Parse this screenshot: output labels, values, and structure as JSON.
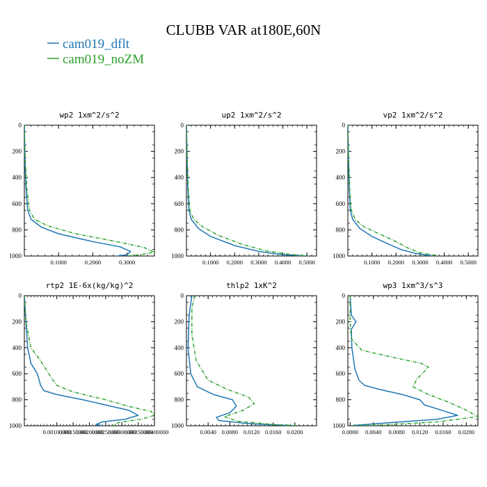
{
  "figure": {
    "title": "CLUBB VAR at180E,60N",
    "colors": {
      "dflt": "#1f77b4",
      "noZM": "#2ca02c",
      "axis": "#000000"
    }
  },
  "legend": {
    "entries": [
      {
        "label": "cam019_dflt",
        "color": "#1f77b4",
        "style": "solid"
      },
      {
        "label": "cam019_noZM",
        "color": "#2ca02c",
        "style": "dashed"
      }
    ]
  },
  "chart_data": [
    {
      "type": "line",
      "title": "wp2  1xm^2/s^2",
      "xlim": [
        0,
        0.38
      ],
      "ylim": [
        1000,
        0
      ],
      "xticks": [
        0.1,
        0.2,
        0.3
      ],
      "xtick_labels": [
        "0.1000",
        "0.2000",
        "0.3000"
      ],
      "yticks": [
        0,
        200,
        400,
        600,
        800,
        1000
      ],
      "ytick_labels": [
        "0",
        "200",
        "400",
        "600",
        "800",
        "1000"
      ],
      "series": [
        {
          "name": "cam019_dflt",
          "points": [
            [
              0,
              0
            ],
            [
              0.002,
              300
            ],
            [
              0.005,
              500
            ],
            [
              0.01,
              650
            ],
            [
              0.02,
              720
            ],
            [
              0.05,
              780
            ],
            [
              0.1,
              830
            ],
            [
              0.2,
              890
            ],
            [
              0.28,
              930
            ],
            [
              0.31,
              965
            ],
            [
              0.3,
              990
            ],
            [
              0.27,
              1000
            ]
          ]
        },
        {
          "name": "cam019_noZM",
          "points": [
            [
              0,
              0
            ],
            [
              0.003,
              300
            ],
            [
              0.008,
              500
            ],
            [
              0.015,
              650
            ],
            [
              0.03,
              720
            ],
            [
              0.07,
              770
            ],
            [
              0.15,
              830
            ],
            [
              0.27,
              890
            ],
            [
              0.35,
              935
            ],
            [
              0.38,
              970
            ],
            [
              0.34,
              990
            ],
            [
              0.3,
              1000
            ]
          ]
        }
      ]
    },
    {
      "type": "line",
      "title": "up2  1xm^2/s^2",
      "xlim": [
        0,
        0.54
      ],
      "ylim": [
        1000,
        0
      ],
      "xticks": [
        0.1,
        0.2,
        0.3,
        0.4,
        0.5
      ],
      "xtick_labels": [
        "0.1000",
        "0.2000",
        "0.3000",
        "0.4000",
        "0.5000"
      ],
      "yticks": [
        0,
        200,
        400,
        600,
        800,
        1000
      ],
      "ytick_labels": [
        "0",
        "200",
        "400",
        "600",
        "800",
        "1000"
      ],
      "series": [
        {
          "name": "cam019_dflt",
          "points": [
            [
              0,
              0
            ],
            [
              0.003,
              300
            ],
            [
              0.006,
              500
            ],
            [
              0.01,
              650
            ],
            [
              0.02,
              720
            ],
            [
              0.05,
              790
            ],
            [
              0.1,
              850
            ],
            [
              0.2,
              920
            ],
            [
              0.3,
              965
            ],
            [
              0.4,
              990
            ],
            [
              0.5,
              1000
            ]
          ]
        },
        {
          "name": "cam019_noZM",
          "points": [
            [
              0,
              0
            ],
            [
              0.004,
              300
            ],
            [
              0.008,
              500
            ],
            [
              0.015,
              650
            ],
            [
              0.03,
              720
            ],
            [
              0.07,
              780
            ],
            [
              0.13,
              840
            ],
            [
              0.23,
              910
            ],
            [
              0.33,
              960
            ],
            [
              0.42,
              985
            ],
            [
              0.5,
              1000
            ]
          ]
        }
      ]
    },
    {
      "type": "line",
      "title": "vp2  1xm^2/s^2",
      "xlim": [
        0,
        0.54
      ],
      "ylim": [
        1000,
        0
      ],
      "xticks": [
        0.1,
        0.2,
        0.3,
        0.4,
        0.5
      ],
      "xtick_labels": [
        "0.1000",
        "0.2000",
        "0.3000",
        "0.4000",
        "0.5000"
      ],
      "yticks": [
        0,
        200,
        400,
        600,
        800,
        1000
      ],
      "ytick_labels": [
        "0",
        "200",
        "400",
        "600",
        "800",
        "1000"
      ],
      "series": [
        {
          "name": "cam019_dflt",
          "points": [
            [
              0,
              0
            ],
            [
              0.003,
              300
            ],
            [
              0.006,
              500
            ],
            [
              0.01,
              650
            ],
            [
              0.02,
              720
            ],
            [
              0.05,
              790
            ],
            [
              0.1,
              850
            ],
            [
              0.17,
              910
            ],
            [
              0.22,
              950
            ],
            [
              0.28,
              980
            ],
            [
              0.35,
              1000
            ]
          ]
        },
        {
          "name": "cam019_noZM",
          "points": [
            [
              0,
              0
            ],
            [
              0.004,
              300
            ],
            [
              0.008,
              500
            ],
            [
              0.015,
              650
            ],
            [
              0.03,
              720
            ],
            [
              0.07,
              780
            ],
            [
              0.13,
              830
            ],
            [
              0.2,
              890
            ],
            [
              0.25,
              940
            ],
            [
              0.3,
              975
            ],
            [
              0.38,
              1000
            ]
          ]
        }
      ]
    },
    {
      "type": "line",
      "title": "rtp2  1E-6x(kg/kg)^2",
      "xlim": [
        0,
        0.004
      ],
      "ylim": [
        1000,
        0
      ],
      "xticks": [
        0.001,
        0.0015,
        0.002,
        0.0025,
        0.003,
        0.0035,
        0.004
      ],
      "xtick_labels": [
        "0.00100000",
        "0.00150000",
        "0.00200000",
        "0.00250000",
        "0.00300000",
        "0.00350000",
        "0.00400000"
      ],
      "yticks": [
        0,
        200,
        400,
        600,
        800,
        1000
      ],
      "ytick_labels": [
        "0",
        "200",
        "400",
        "600",
        "800",
        "1000"
      ],
      "series": [
        {
          "name": "cam019_dflt",
          "points": [
            [
              0,
              0
            ],
            [
              5e-05,
              200
            ],
            [
              0.0001,
              400
            ],
            [
              0.0002,
              520
            ],
            [
              0.0004,
              600
            ],
            [
              0.0005,
              690
            ],
            [
              0.0006,
              730
            ],
            [
              0.001,
              760
            ],
            [
              0.0018,
              800
            ],
            [
              0.0025,
              840
            ],
            [
              0.0032,
              880
            ],
            [
              0.0035,
              920
            ],
            [
              0.0031,
              950
            ],
            [
              0.0024,
              970
            ],
            [
              0.0022,
              990
            ],
            [
              0.0024,
              1000
            ]
          ]
        },
        {
          "name": "cam019_noZM",
          "points": [
            [
              0,
              0
            ],
            [
              5e-05,
              200
            ],
            [
              0.0002,
              400
            ],
            [
              0.0005,
              500
            ],
            [
              0.0008,
              620
            ],
            [
              0.001,
              690
            ],
            [
              0.0015,
              740
            ],
            [
              0.0025,
              800
            ],
            [
              0.0032,
              850
            ],
            [
              0.0039,
              890
            ],
            [
              0.004,
              920
            ],
            [
              0.0036,
              950
            ],
            [
              0.0029,
              975
            ],
            [
              0.0027,
              1000
            ]
          ]
        }
      ]
    },
    {
      "type": "line",
      "title": "thlp2  1xK^2",
      "xlim": [
        0,
        0.024
      ],
      "ylim": [
        1000,
        0
      ],
      "xticks": [
        0.004,
        0.008,
        0.012,
        0.016,
        0.02
      ],
      "xtick_labels": [
        "0.0040",
        "0.0080",
        "0.0120",
        "0.0160",
        "0.0200"
      ],
      "yticks": [
        0,
        200,
        400,
        600,
        800,
        1000
      ],
      "ytick_labels": [
        "0",
        "200",
        "400",
        "600",
        "800",
        "1000"
      ],
      "series": [
        {
          "name": "cam019_dflt",
          "points": [
            [
              0.001,
              0
            ],
            [
              0.0005,
              150
            ],
            [
              0.0003,
              400
            ],
            [
              0.0008,
              600
            ],
            [
              0.002,
              700
            ],
            [
              0.005,
              760
            ],
            [
              0.0085,
              800
            ],
            [
              0.0092,
              850
            ],
            [
              0.008,
              900
            ],
            [
              0.0055,
              935
            ],
            [
              0.006,
              960
            ],
            [
              0.012,
              985
            ],
            [
              0.02,
              1000
            ]
          ]
        },
        {
          "name": "cam019_noZM",
          "points": [
            [
              0.0015,
              0
            ],
            [
              0.001,
              100
            ],
            [
              0.001,
              300
            ],
            [
              0.0018,
              500
            ],
            [
              0.004,
              650
            ],
            [
              0.0075,
              720
            ],
            [
              0.0115,
              780
            ],
            [
              0.0125,
              830
            ],
            [
              0.0105,
              880
            ],
            [
              0.007,
              930
            ],
            [
              0.0095,
              965
            ],
            [
              0.016,
              990
            ],
            [
              0.021,
              1000
            ]
          ]
        }
      ]
    },
    {
      "type": "line",
      "title": "wp3  1xm^3/s^3",
      "xlim": [
        -0.0004,
        0.022
      ],
      "ylim": [
        1000,
        0
      ],
      "xticks": [
        0,
        0.004,
        0.008,
        0.012,
        0.016,
        0.02
      ],
      "xtick_labels": [
        "0.0000",
        "0.0040",
        "0.0080",
        "0.0120",
        "0.0160",
        "0.0200"
      ],
      "yticks": [
        0,
        200,
        400,
        600,
        800,
        1000
      ],
      "ytick_labels": [
        "0",
        "200",
        "400",
        "600",
        "800",
        "1000"
      ],
      "series": [
        {
          "name": "cam019_dflt",
          "points": [
            [
              0,
              0
            ],
            [
              0.0002,
              150
            ],
            [
              0.001,
              200
            ],
            [
              0.0002,
              260
            ],
            [
              0.0003,
              400
            ],
            [
              0.0008,
              560
            ],
            [
              0.0015,
              650
            ],
            [
              0.0025,
              690
            ],
            [
              0.005,
              720
            ],
            [
              0.009,
              760
            ],
            [
              0.012,
              800
            ],
            [
              0.0128,
              840
            ],
            [
              0.015,
              870
            ],
            [
              0.0185,
              920
            ],
            [
              0.015,
              950
            ],
            [
              0.004,
              985
            ],
            [
              0,
              1000
            ]
          ]
        },
        {
          "name": "cam019_noZM",
          "points": [
            [
              0,
              0
            ],
            [
              0,
              200
            ],
            [
              0.0002,
              330
            ],
            [
              0.002,
              420
            ],
            [
              0.008,
              480
            ],
            [
              0.0122,
              520
            ],
            [
              0.0135,
              550
            ],
            [
              0.0115,
              640
            ],
            [
              0.0108,
              700
            ],
            [
              0.0135,
              760
            ],
            [
              0.017,
              820
            ],
            [
              0.02,
              880
            ],
            [
              0.022,
              930
            ],
            [
              0.015,
              970
            ],
            [
              0.005,
              995
            ],
            [
              0,
              1000
            ]
          ]
        }
      ]
    }
  ]
}
